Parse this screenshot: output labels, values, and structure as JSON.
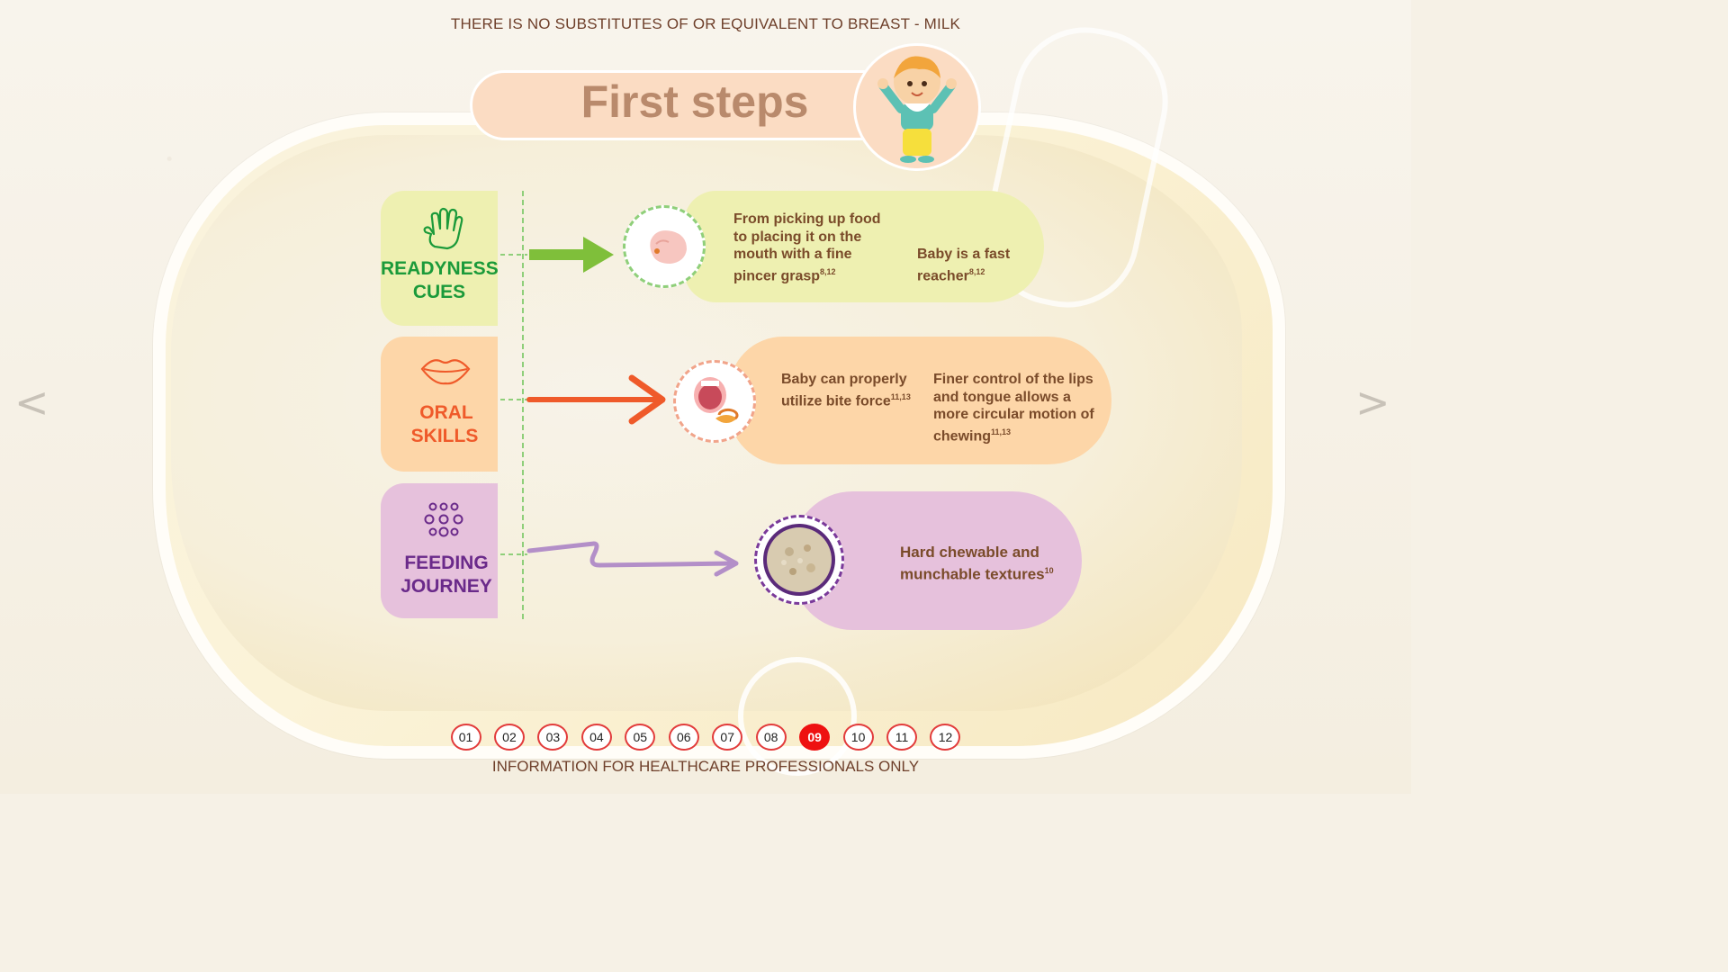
{
  "header": {
    "notice": "THERE IS NO SUBSTITUTES OF OR EQUIVALENT TO BREAST - MILK"
  },
  "title": "First steps",
  "rows": [
    {
      "label_line1": "READYNESS",
      "label_line2": "CUES",
      "icon": "hand-icon",
      "tab_color": "#eef0b1",
      "text_color": "#1b9a3a",
      "card_color": "#eef0b1",
      "card_text_1": "From picking up food to placing it on the mouth with a fine pincer grasp",
      "card_text_1_ref": "8,12",
      "card_text_2": "Baby is a fast reacher",
      "card_text_2_ref": "8,12",
      "picture_icon": "baby-fist-icon"
    },
    {
      "label_line1": "ORAL",
      "label_line2": "SKILLS",
      "icon": "lips-icon",
      "tab_color": "#fdd6a8",
      "text_color": "#ef5a2a",
      "card_color": "#fdd6a8",
      "card_text_1": "Baby can properly utilize bite force",
      "card_text_1_ref": "11,13",
      "card_text_2": "Finer control of the lips and tongue allows a more circular motion of chewing",
      "card_text_2_ref": "11,13",
      "picture_icon": "open-mouth-icon"
    },
    {
      "label_line1": "FEEDING",
      "label_line2": "JOURNEY",
      "icon": "dots-cluster-icon",
      "tab_color": "#e6c1dc",
      "text_color": "#6a2a8a",
      "card_color": "#e6c1dc",
      "card_text_1": "Hard chewable and munchable textures",
      "card_text_1_ref": "10",
      "picture_icon": "oat-cereal-icon"
    }
  ],
  "navigation": {
    "prev": "<",
    "next": ">",
    "pages": [
      "01",
      "02",
      "03",
      "04",
      "05",
      "06",
      "07",
      "08",
      "09",
      "10",
      "11",
      "12"
    ],
    "active_page": "09"
  },
  "footer": {
    "notice": "INFORMATION FOR HEALTHCARE PROFESSIONALS ONLY"
  }
}
